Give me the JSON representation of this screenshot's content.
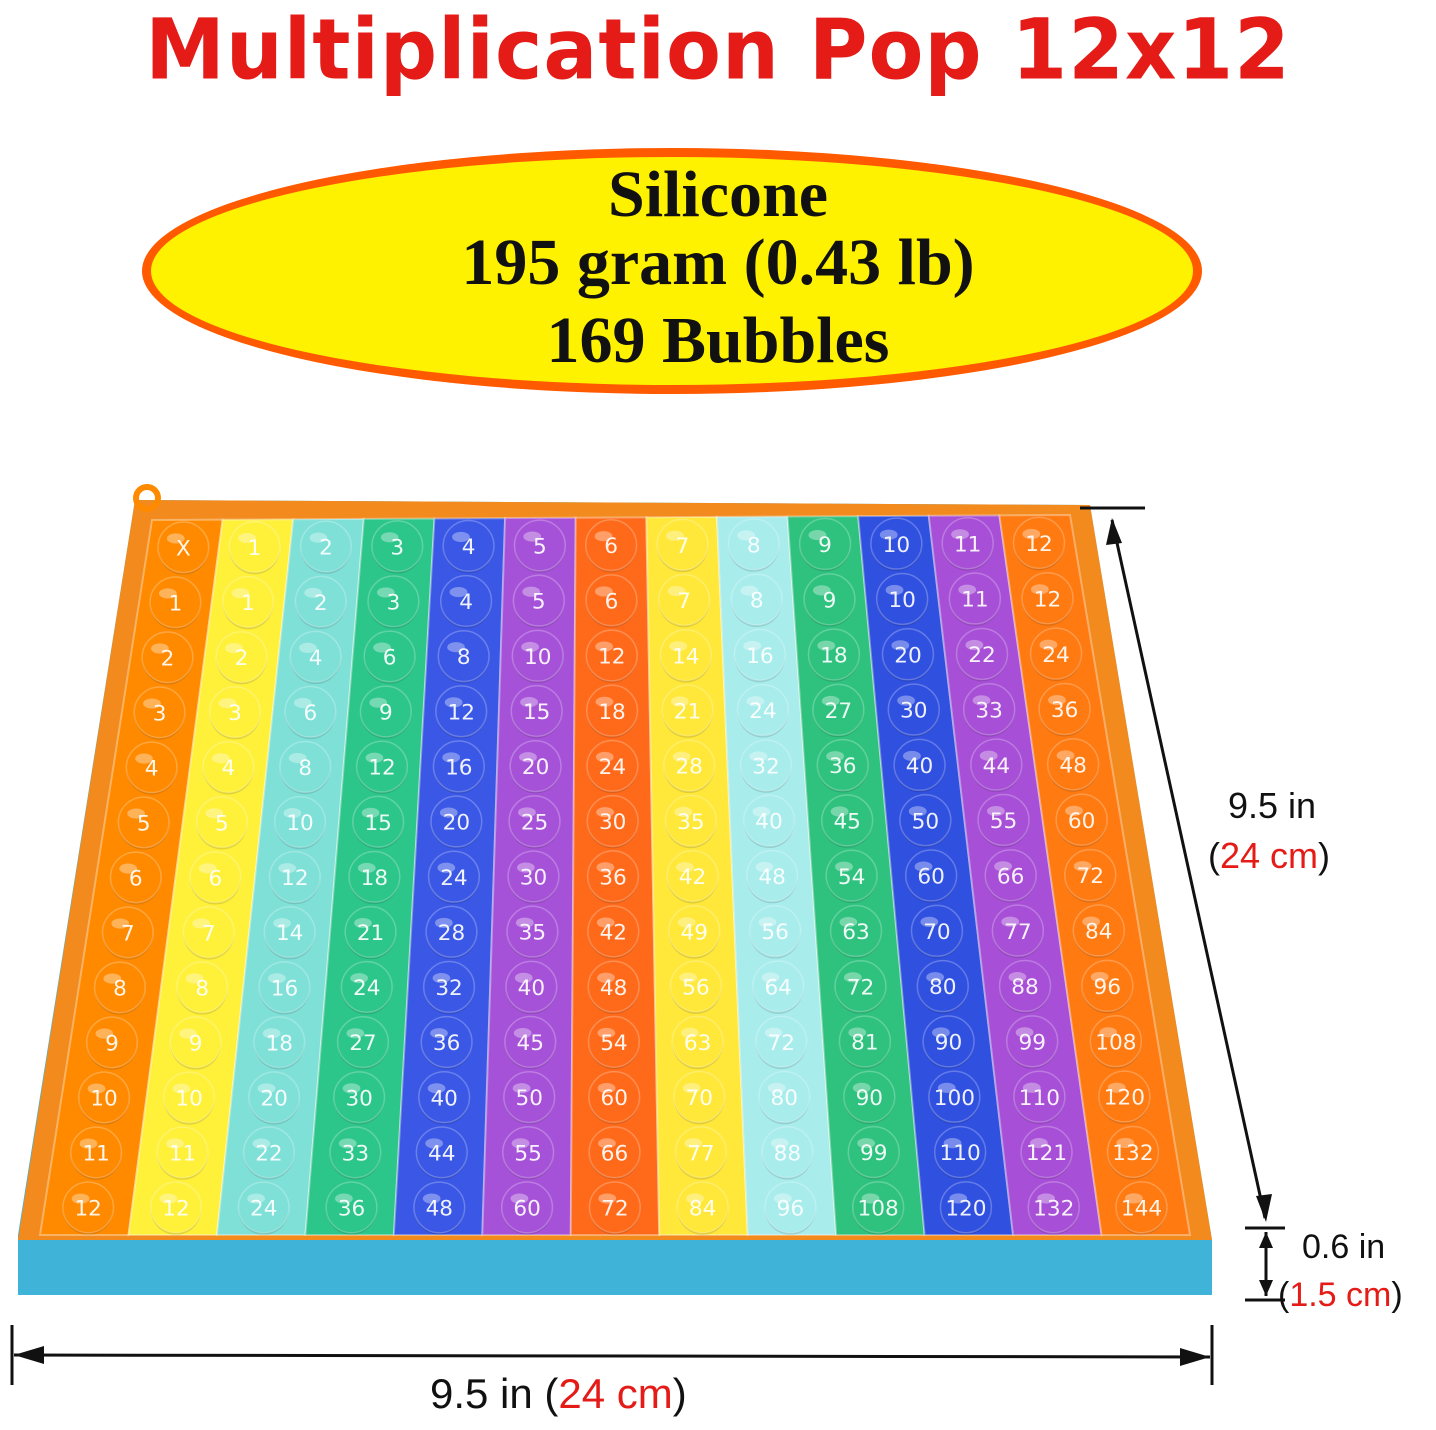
{
  "title": "Multiplication Pop 12x12",
  "badge": {
    "material": "Silicone",
    "weight": "195 gram (0.43 lb)",
    "bubbles": "169 Bubbles"
  },
  "dimensions": {
    "height_in": "9.5 in",
    "height_cm": "24 cm",
    "width_in": "9.5 in",
    "width_cm": "24 cm",
    "thickness_in": "0.6 in",
    "thickness_cm": "1.5 cm"
  },
  "board": {
    "corner_label": "X",
    "size": 12,
    "column_colors": [
      "#ff8a00",
      "#fff03a",
      "#7fe0d8",
      "#2cc58a",
      "#3a57e6",
      "#a652d8",
      "#ff6a1a",
      "#ffe83a",
      "#a8ecec",
      "#2ec27e",
      "#3050e0",
      "#a74fd6",
      "#ff7a10"
    ],
    "frame_color": "#f28a1e"
  },
  "colors": {
    "title": "#e41b17",
    "oval_fill": "#fff200",
    "oval_border": "#ff5a00",
    "accent_red": "#e41b17"
  }
}
